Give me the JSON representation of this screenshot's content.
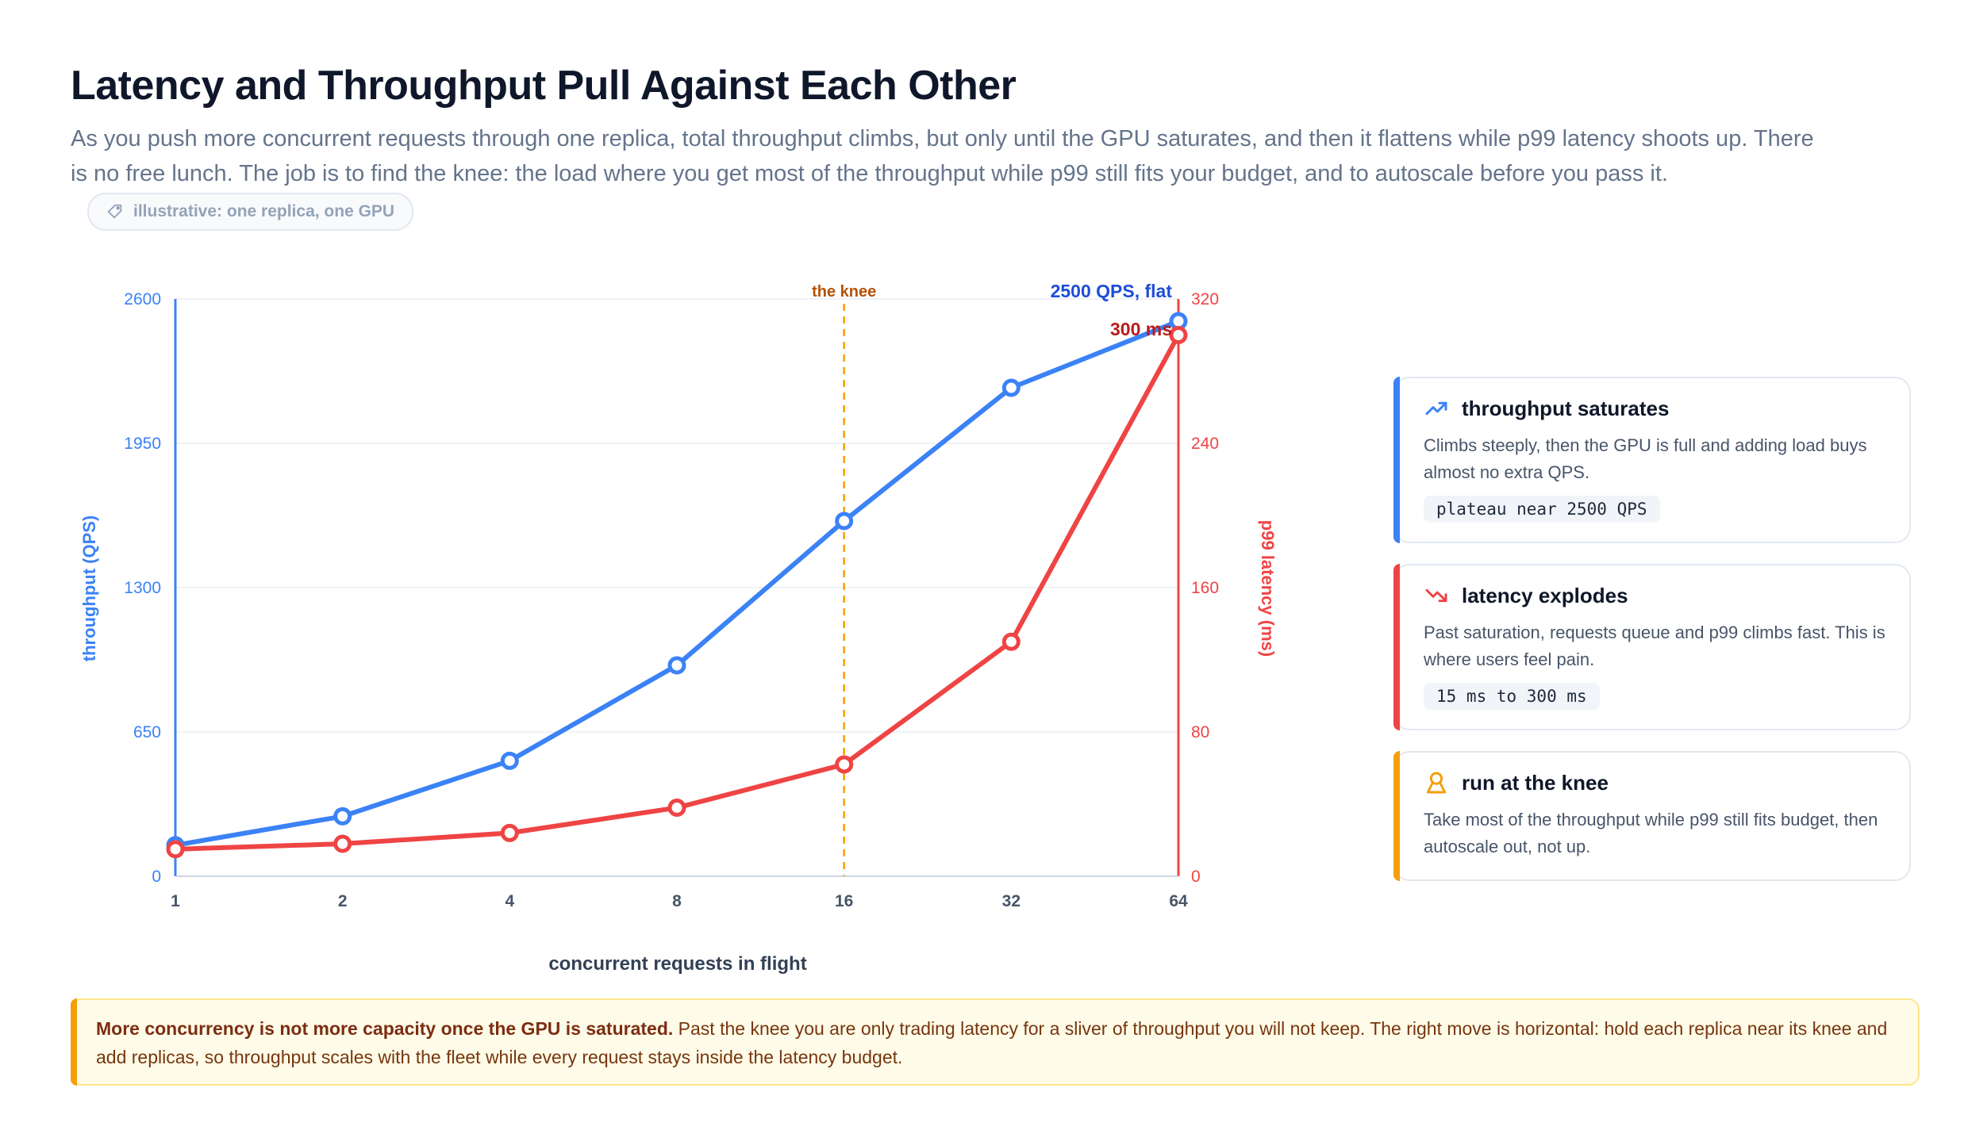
{
  "header": {
    "title": "Latency and Throughput Pull Against Each Other",
    "subtitle": "As you push more concurrent requests through one replica, total throughput climbs, but only until the GPU saturates, and then it flattens while p99 latency shoots up. There is no free lunch. The job is to find the knee: the load where you get most of the throughput while p99 still fits your budget, and to autoscale before you pass it.",
    "tag": "illustrative: one replica, one GPU"
  },
  "chart_data": {
    "type": "line",
    "xlabel": "concurrent requests in flight",
    "categories": [
      "1",
      "2",
      "4",
      "8",
      "16",
      "32",
      "64"
    ],
    "left_axis": {
      "label": "throughput (QPS)",
      "range": [
        0,
        2600
      ],
      "ticks": [
        "0",
        "650",
        "1300",
        "1950",
        "2600"
      ]
    },
    "right_axis": {
      "label": "p99 latency (ms)",
      "range": [
        0,
        320
      ],
      "ticks": [
        "0",
        "80",
        "160",
        "240",
        "320"
      ]
    },
    "series": [
      {
        "name": "throughput (QPS)",
        "axis": "left",
        "color": "#3b82f6",
        "values": [
          140,
          270,
          520,
          950,
          1600,
          2200,
          2500
        ]
      },
      {
        "name": "p99 latency (ms)",
        "axis": "right",
        "color": "#ef4444",
        "values": [
          15,
          18,
          24,
          38,
          62,
          130,
          300
        ]
      }
    ],
    "knee": {
      "x": "16",
      "label": "the knee",
      "color": "#f59e0b"
    },
    "annotations": {
      "throughput_end": "2500 QPS, flat",
      "latency_end": "300 ms"
    },
    "grid": true
  },
  "cards": [
    {
      "icon": "trending-up-icon",
      "color": "#3b82f6",
      "title": "throughput saturates",
      "text": "Climbs steeply, then the GPU is full and adding load buys almost no extra QPS.",
      "pill": "plateau near 2500 QPS"
    },
    {
      "icon": "trending-down-icon",
      "color": "#ef4444",
      "title": "latency explodes",
      "text": "Past saturation, requests queue and p99 climbs fast. This is where users feel pain.",
      "pill": "15 ms to 300 ms"
    },
    {
      "icon": "award-icon",
      "color": "#f59e0b",
      "title": "run at the knee",
      "text": "Take most of the throughput while p99 still fits budget, then autoscale out, not up."
    }
  ],
  "callout": {
    "strong": "More concurrency is not more capacity once the GPU is saturated.",
    "text": " Past the knee you are only trading latency for a sliver of throughput you will not keep. The right move is horizontal: hold each replica near its knee and add replicas, so throughput scales with the fleet while every request stays inside the latency budget."
  }
}
